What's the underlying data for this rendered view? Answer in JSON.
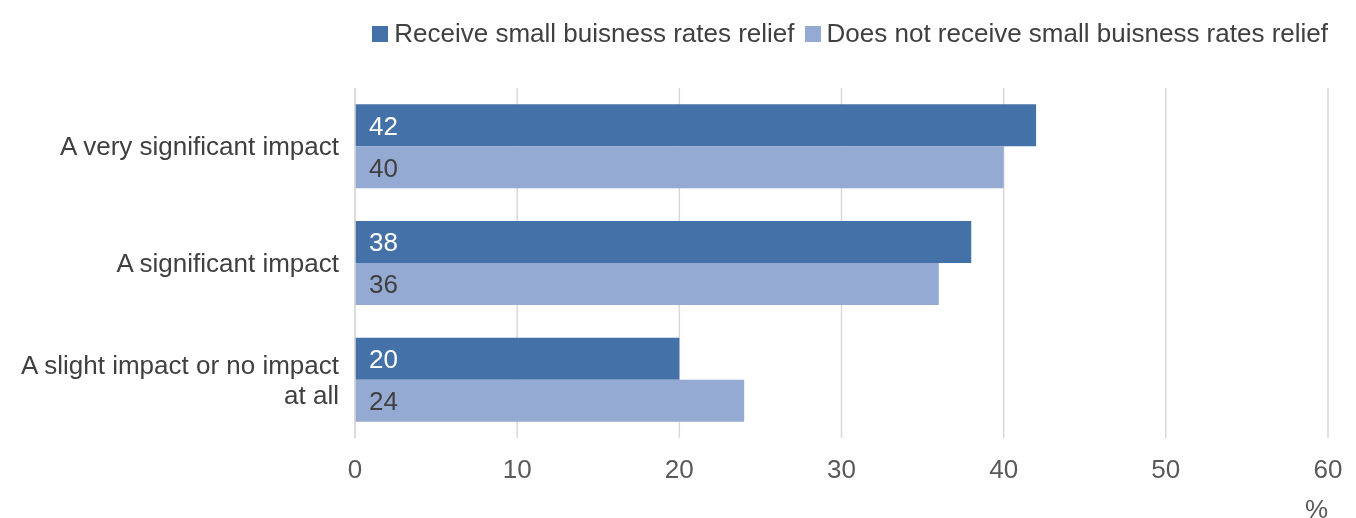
{
  "chart_data": {
    "type": "bar",
    "orientation": "horizontal",
    "categories": [
      "A very significant impact",
      "A significant impact",
      "A slight impact or no impact at all"
    ],
    "series": [
      {
        "name": "Receive small buisness rates relief",
        "color": "#4472a8",
        "values": [
          42,
          38,
          20
        ]
      },
      {
        "name": "Does not receive small buisness rates relief",
        "color": "#95aad3",
        "values": [
          40,
          36,
          24
        ]
      }
    ],
    "xlabel": "%",
    "xlim": [
      0,
      60
    ],
    "xticks": [
      0,
      10,
      20,
      30,
      40,
      50,
      60
    ],
    "grid": "x",
    "legend": "top right",
    "data_labels": true
  }
}
